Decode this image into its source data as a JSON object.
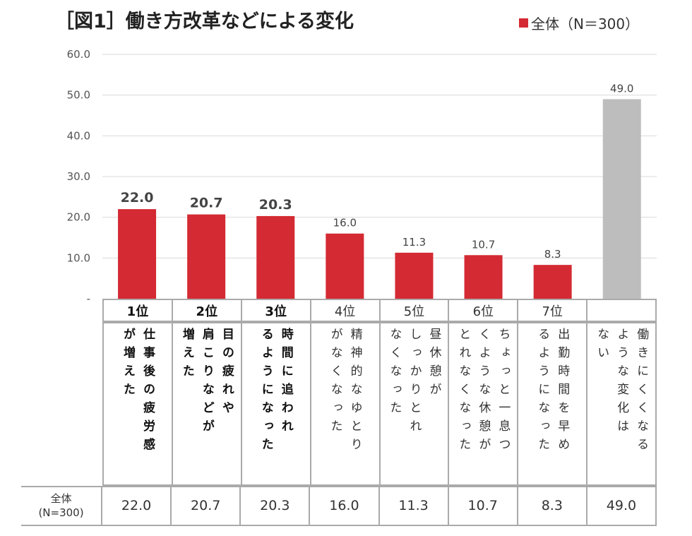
{
  "title": "［図1］働き方改革などによる変化",
  "legend": "全体（N＝300）",
  "colors": {
    "bar": "#d42a33",
    "other": "#bdbdbd"
  },
  "chart_data": {
    "type": "bar",
    "title": "［図1］働き方改革などによる変化",
    "ylim": [
      0,
      60
    ],
    "yticks": [
      "-",
      "10.0",
      "20.0",
      "30.0",
      "40.0",
      "50.0",
      "60.0"
    ],
    "grid": true,
    "legend_position": "top-right",
    "series": [
      {
        "name": "全体（N＝300）",
        "values": [
          22.0,
          20.7,
          20.3,
          16.0,
          11.3,
          10.7,
          8.3,
          49.0
        ]
      }
    ],
    "data_labels": [
      "22.0",
      "20.7",
      "20.3",
      "16.0",
      "11.3",
      "10.7",
      "8.3",
      "49.0"
    ],
    "ranks": [
      "1位",
      "2位",
      "3位",
      "4位",
      "5位",
      "6位",
      "7位",
      ""
    ],
    "categories": [
      [
        "仕事後の疲労感",
        "が増えた"
      ],
      [
        "目の疲れや",
        "肩こりなどが",
        "増えた"
      ],
      [
        "時間に追われ",
        "るようになった"
      ],
      [
        "精神的なゆとり",
        "がなくなった"
      ],
      [
        "昼休憩が",
        "しっかりとれ",
        "なくなった"
      ],
      [
        "ちょっと一息つ",
        "くような休憩が",
        "とれなくなった"
      ],
      [
        "出勤時間を早め",
        "るようになった"
      ],
      [
        "働きにくくなる",
        "ような変化は",
        "ない"
      ]
    ]
  },
  "table": {
    "row_label": "全体",
    "row_sub": "(N=300)",
    "values": [
      "22.0",
      "20.7",
      "20.3",
      "16.0",
      "11.3",
      "10.7",
      "8.3",
      "49.0"
    ]
  }
}
